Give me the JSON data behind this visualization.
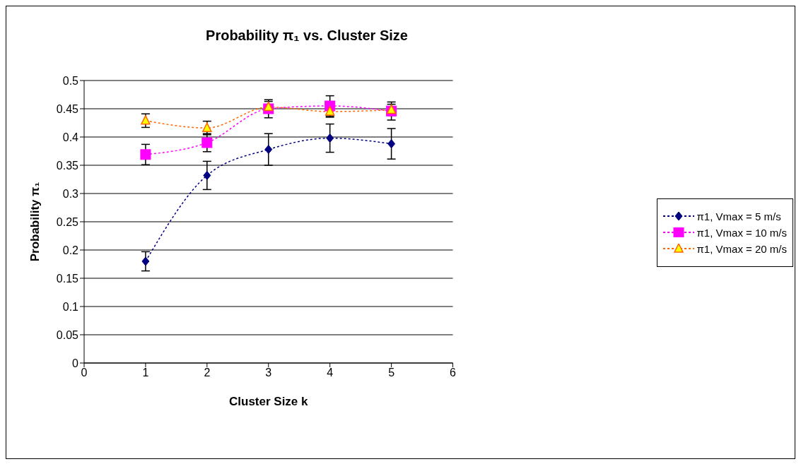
{
  "chart_data": {
    "type": "line",
    "title": "Probability π₁ vs. Cluster Size",
    "xlabel": "Cluster Size k",
    "ylabel": "Probability π₁",
    "x": [
      1,
      2,
      3,
      4,
      5
    ],
    "series": [
      {
        "name": "π1, Vmax = 5 m/s",
        "color": "#000080",
        "marker": "diamond",
        "values": [
          0.18,
          0.332,
          0.378,
          0.398,
          0.388
        ],
        "errors": [
          0.017,
          0.025,
          0.028,
          0.025,
          0.027
        ]
      },
      {
        "name": "π1, Vmax = 10 m/s",
        "color": "#ff00ff",
        "marker": "square",
        "values": [
          0.369,
          0.39,
          0.45,
          0.455,
          0.446
        ],
        "errors": [
          0.018,
          0.016,
          0.016,
          0.018,
          0.016
        ]
      },
      {
        "name": "π1, Vmax = 20 m/s",
        "color": "#ff6600",
        "marker": "triangle",
        "values": [
          0.429,
          0.416,
          0.453,
          0.445,
          0.448
        ],
        "errors": [
          0.012,
          0.012,
          0.01,
          0.01,
          0.01
        ]
      }
    ],
    "xlim": [
      0,
      6
    ],
    "xticks": [
      0,
      1,
      2,
      3,
      4,
      5,
      6
    ],
    "ylim": [
      0,
      0.5
    ],
    "yticks": [
      0,
      0.05,
      0.1,
      0.15,
      0.2,
      0.25,
      0.3,
      0.35,
      0.4,
      0.45,
      0.5
    ],
    "grid": "y",
    "legend": "right",
    "line_style": "dotted"
  }
}
